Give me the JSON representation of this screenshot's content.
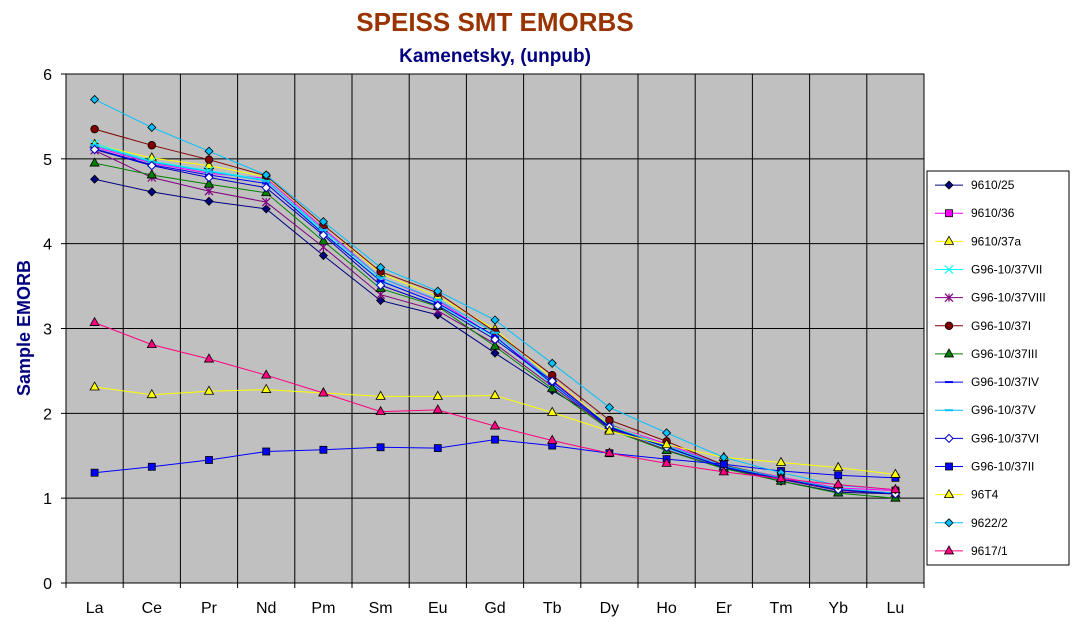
{
  "chart_data": {
    "type": "line",
    "title": "SPEISS  SMT EMORBS",
    "subtitle": "Kamenetsky, (unpub)",
    "xlabel": "",
    "ylabel": "Sample  EMORB",
    "ylim": [
      0,
      6
    ],
    "yticks": [
      0,
      1,
      2,
      3,
      4,
      5,
      6
    ],
    "grid": true,
    "legend_position": "right",
    "plot_background": "#c0c0c0",
    "categories": [
      "La",
      "Ce",
      "Pr",
      "Nd",
      "Pm",
      "Sm",
      "Eu",
      "Gd",
      "Tb",
      "Dy",
      "Ho",
      "Er",
      "Tm",
      "Yb",
      "Lu"
    ],
    "series": [
      {
        "name": "9610/25",
        "color": "#000080",
        "marker": "diamond-filled",
        "values": [
          4.76,
          4.61,
          4.5,
          4.41,
          3.86,
          3.33,
          3.16,
          2.71,
          2.27,
          1.87,
          1.61,
          1.36,
          1.2,
          1.07,
          1.05
        ]
      },
      {
        "name": "9610/36",
        "color": "#ff00ff",
        "marker": "square-filled",
        "values": [
          5.14,
          4.95,
          4.83,
          4.77,
          4.18,
          3.6,
          3.33,
          2.9,
          2.39,
          1.86,
          1.64,
          1.38,
          1.25,
          1.12,
          1.09
        ]
      },
      {
        "name": "9610/37a",
        "color": "#ffff00",
        "marker": "triangle-filled",
        "values": [
          5.17,
          5.01,
          4.92,
          4.79,
          4.22,
          3.65,
          3.38,
          2.99,
          2.41,
          1.86,
          1.62,
          1.37,
          1.24,
          1.11,
          1.05
        ]
      },
      {
        "name": "G96-10/37VII",
        "color": "#00ffff",
        "marker": "x",
        "values": [
          5.18,
          4.97,
          4.86,
          4.75,
          4.13,
          3.57,
          3.29,
          2.9,
          2.34,
          1.83,
          1.59,
          1.36,
          1.23,
          1.1,
          1.05
        ]
      },
      {
        "name": "G96-10/37VIII",
        "color": "#800080",
        "marker": "star",
        "values": [
          5.1,
          4.78,
          4.62,
          4.49,
          3.96,
          3.4,
          3.21,
          2.82,
          2.32,
          1.82,
          1.57,
          1.35,
          1.22,
          1.09,
          1.05
        ]
      },
      {
        "name": "G96-10/37I",
        "color": "#800000",
        "marker": "circle-filled",
        "values": [
          5.35,
          5.16,
          4.99,
          4.8,
          4.22,
          3.67,
          3.42,
          2.96,
          2.45,
          1.92,
          1.67,
          1.39,
          1.24,
          1.11,
          1.05
        ]
      },
      {
        "name": "G96-10/37III",
        "color": "#008000",
        "marker": "triangle-filled",
        "values": [
          4.95,
          4.81,
          4.7,
          4.6,
          4.03,
          3.47,
          3.26,
          2.79,
          2.29,
          1.81,
          1.56,
          1.35,
          1.2,
          1.06,
          1.0
        ]
      },
      {
        "name": "G96-10/37IV",
        "color": "#0000ff",
        "marker": "dash",
        "values": [
          5.12,
          4.93,
          4.81,
          4.71,
          4.12,
          3.56,
          3.3,
          2.91,
          2.35,
          1.83,
          1.6,
          1.37,
          1.23,
          1.1,
          1.05
        ]
      },
      {
        "name": "G96-10/37V",
        "color": "#00c0ff",
        "marker": "dash",
        "values": [
          5.16,
          4.96,
          4.85,
          4.74,
          4.16,
          3.6,
          3.34,
          2.95,
          2.38,
          1.85,
          1.62,
          1.38,
          1.24,
          1.11,
          1.06
        ]
      },
      {
        "name": "G96-10/37VI",
        "color": "#0000c0",
        "marker": "diamond-open",
        "values": [
          5.11,
          4.92,
          4.78,
          4.66,
          4.1,
          3.51,
          3.27,
          2.87,
          2.38,
          1.84,
          1.6,
          1.36,
          1.23,
          1.1,
          1.05
        ]
      },
      {
        "name": "G96-10/37II",
        "color": "#0000ff",
        "marker": "square-filled",
        "values": [
          1.3,
          1.37,
          1.45,
          1.55,
          1.57,
          1.6,
          1.59,
          1.69,
          1.62,
          1.53,
          1.46,
          1.4,
          1.32,
          1.27,
          1.24
        ]
      },
      {
        "name": "96T4",
        "color": "#ffff00",
        "marker": "triangle-filled",
        "values": [
          2.31,
          2.22,
          2.26,
          2.28,
          2.24,
          2.2,
          2.2,
          2.21,
          2.01,
          1.79,
          1.63,
          1.48,
          1.42,
          1.36,
          1.28
        ]
      },
      {
        "name": "9622/2",
        "color": "#00c0ff",
        "marker": "diamond-filled",
        "values": [
          5.7,
          5.37,
          5.09,
          4.81,
          4.26,
          3.72,
          3.44,
          3.1,
          2.59,
          2.07,
          1.77,
          1.48,
          1.3,
          1.15,
          1.1
        ]
      },
      {
        "name": "9617/1",
        "color": "#ff0080",
        "marker": "triangle-filled",
        "values": [
          3.07,
          2.81,
          2.64,
          2.45,
          2.24,
          2.02,
          2.04,
          1.85,
          1.68,
          1.53,
          1.41,
          1.31,
          1.23,
          1.16,
          1.1
        ]
      }
    ]
  }
}
